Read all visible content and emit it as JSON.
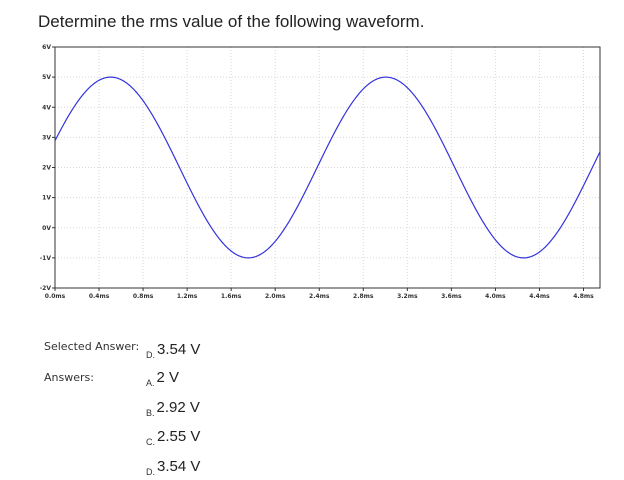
{
  "question": {
    "text": "Determine the rms value of the following waveform."
  },
  "chart_data": {
    "type": "line",
    "title": "",
    "xlabel": "",
    "ylabel": "",
    "xlim": [
      0,
      4.95
    ],
    "ylim": [
      -2,
      6
    ],
    "x_ticks": [
      "0.0ms",
      "0.4ms",
      "0.8ms",
      "1.2ms",
      "1.6ms",
      "2.0ms",
      "2.4ms",
      "2.8ms",
      "3.2ms",
      "3.6ms",
      "4.0ms",
      "4.4ms",
      "4.8ms"
    ],
    "y_ticks": [
      "6V",
      "5V",
      "4V",
      "3V",
      "2V",
      "1V",
      "0V",
      "-1V",
      "-2V"
    ],
    "grid": true,
    "line_color": "#3333dd",
    "series": [
      {
        "function": "y = 2 + 3*sin(2*pi*t/2.5 + 0.30)",
        "t_unit": "ms",
        "offset": 2,
        "amplitude": 3,
        "period": 2.5,
        "phase": 0.3
      }
    ]
  },
  "selected_answer": {
    "label": "Selected Answer:",
    "letter": "D.",
    "value": "3.54 V"
  },
  "answers": {
    "label": "Answers:",
    "options": [
      {
        "letter": "A.",
        "value": "2 V"
      },
      {
        "letter": "B.",
        "value": "2.92 V"
      },
      {
        "letter": "C.",
        "value": "2.55 V"
      },
      {
        "letter": "D.",
        "value": "3.54 V"
      }
    ]
  }
}
